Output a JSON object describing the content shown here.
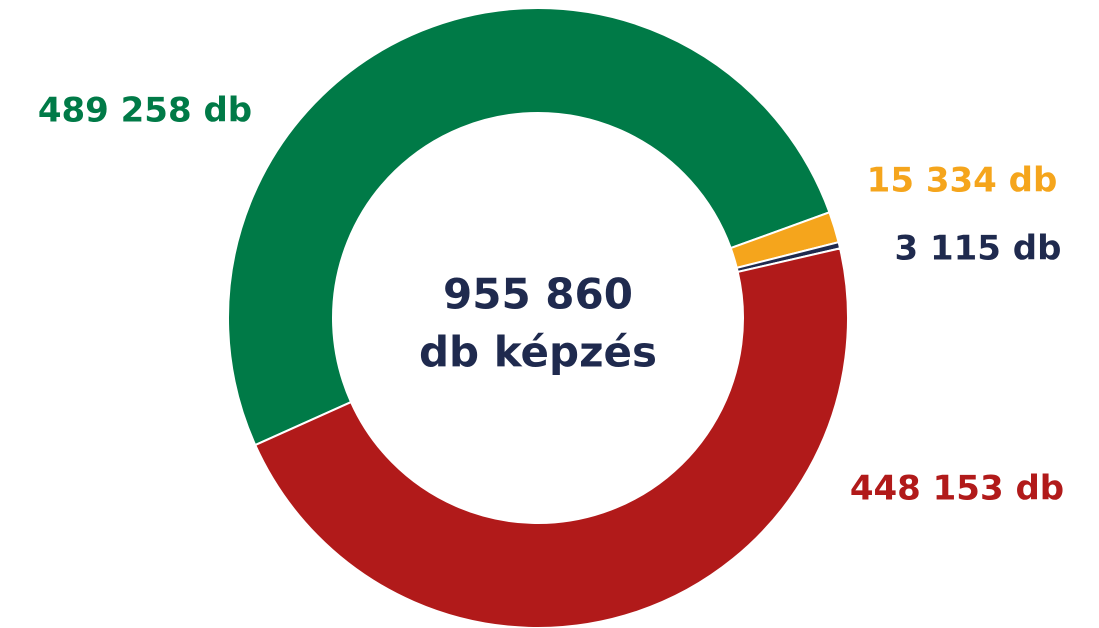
{
  "chart_data": {
    "type": "donut",
    "center_text": [
      "955 860",
      "db képzés"
    ],
    "categories": [
      null,
      null,
      null,
      null
    ],
    "values": [
      489258,
      15334,
      3115,
      448153
    ],
    "value_labels": [
      "489 258 db",
      "15 334 db",
      "3 115 db",
      "448 153 db"
    ],
    "colors": [
      "#007a47",
      "#f5a51c",
      "#1f2a4e",
      "#b11a1a"
    ]
  }
}
